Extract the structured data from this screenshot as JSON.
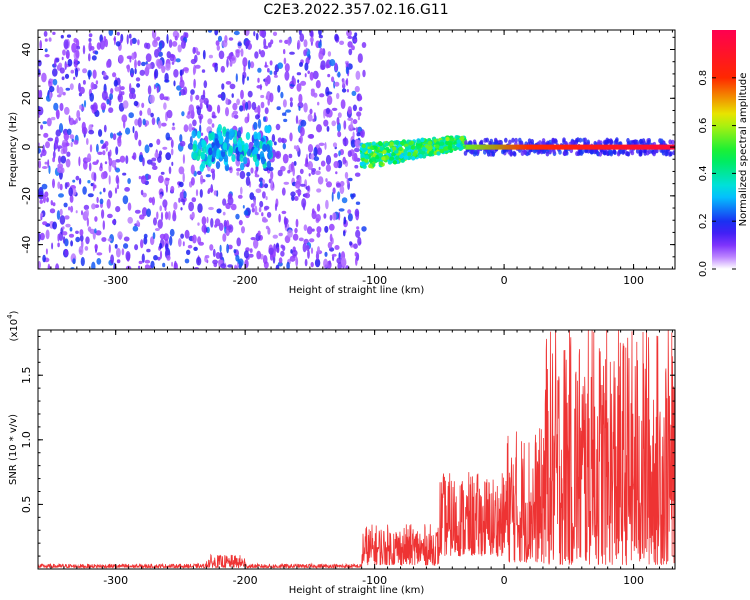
{
  "title": "C2E3.2022.357.02.16.G11",
  "chart_data": [
    {
      "type": "heatmap",
      "xlabel": "Height of straight line (km)",
      "ylabel": "Frequency (Hz)",
      "xlim": [
        -360,
        132
      ],
      "ylim": [
        -50,
        48
      ],
      "x_ticks": [
        -300,
        -200,
        -100,
        0,
        100
      ],
      "x_tick_labels": [
        "-300",
        "-200",
        "-100",
        "0",
        "100"
      ],
      "y_ticks": [
        -40,
        -20,
        0,
        20,
        40
      ],
      "y_tick_labels": [
        "-40",
        "-20",
        "0",
        "20",
        "40"
      ],
      "colorbar": {
        "label": "Normalized spectral amplitude",
        "range": [
          0,
          1
        ],
        "ticks": [
          0.0,
          0.2,
          0.4,
          0.6,
          0.8
        ],
        "tick_labels": [
          "0.0",
          "0.2",
          "0.4",
          "0.6",
          "0.8"
        ],
        "colormap": "rainbow"
      },
      "regions": [
        {
          "name": "diffuse noise",
          "x": [
            -360,
            -108
          ],
          "amplitude": [
            0.05,
            0.25
          ]
        },
        {
          "name": "weak cluster",
          "x": [
            -240,
            -180
          ],
          "y": [
            -10,
            10
          ],
          "amplitude": [
            0.2,
            0.4
          ]
        },
        {
          "name": "signal band (drifting)",
          "x": [
            -110,
            -30
          ],
          "y_center": [
            -4,
            2
          ],
          "amplitude": [
            0.3,
            0.6
          ]
        },
        {
          "name": "signal line",
          "x": [
            -30,
            132
          ],
          "y_center": 0,
          "amplitude": [
            0.8,
            1.0
          ]
        }
      ],
      "grid": false
    },
    {
      "type": "line",
      "xlabel": "Height of straight line (km)",
      "ylabel": "SNR (10 * v/v)",
      "y_multiplier": "(x10^4)",
      "y_multiplier_base": "(x10",
      "y_multiplier_exp": "4",
      "xlim": [
        -360,
        132
      ],
      "ylim": [
        0,
        18500
      ],
      "x_ticks": [
        -300,
        -200,
        -100,
        0,
        100
      ],
      "x_tick_labels": [
        "-300",
        "-200",
        "-100",
        "0",
        "100"
      ],
      "y_ticks": [
        5000,
        10000,
        15000
      ],
      "y_tick_labels": [
        "0.5",
        "1.0",
        "1.5"
      ],
      "series": [
        {
          "color": "#ee3333",
          "segments": [
            {
              "x": [
                -360,
                -230
              ],
              "y_range": [
                100,
                400
              ]
            },
            {
              "x": [
                -230,
                -200
              ],
              "y_range": [
                100,
                1100
              ]
            },
            {
              "x": [
                -200,
                -110
              ],
              "y_range": [
                100,
                400
              ]
            },
            {
              "x": [
                -110,
                -50
              ],
              "y_range": [
                300,
                3500
              ]
            },
            {
              "x": [
                -50,
                0
              ],
              "y_range": [
                1000,
                7500
              ]
            },
            {
              "x": [
                0,
                30
              ],
              "y_range": [
                500,
                11000
              ]
            },
            {
              "x": [
                30,
                132
              ],
              "y_range": [
                300,
                18800
              ]
            }
          ],
          "peaks": [
            {
              "x": 68,
              "y": 18700
            },
            {
              "x": 110,
              "y": 18700
            },
            {
              "x": 48,
              "y": 16200
            },
            {
              "x": 40,
              "y": 14700
            },
            {
              "x": 127,
              "y": 15300
            }
          ]
        }
      ],
      "grid": false
    }
  ]
}
